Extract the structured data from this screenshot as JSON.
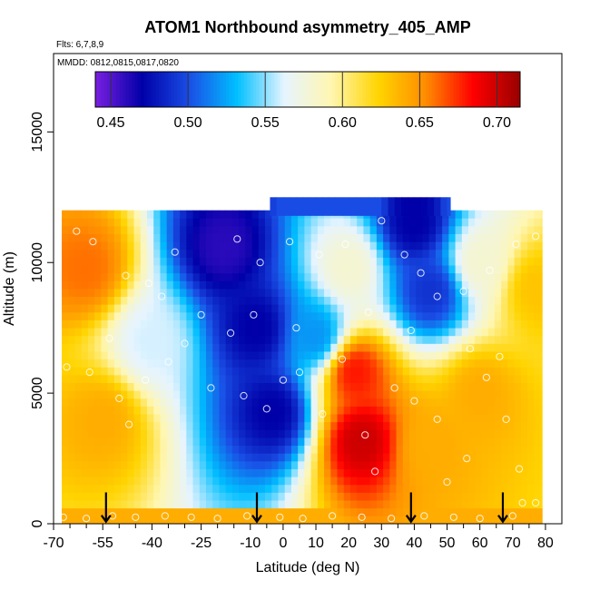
{
  "chart_data": {
    "type": "heatmap",
    "title": "ATOM1 Northbound asymmetry_405_AMP",
    "flights_note": "Flts: 6,7,8,9",
    "dates_note": "MMDD: 0812,0815,0817,0820",
    "xlabel": "Latitude (deg N)",
    "ylabel": "Altitude (m)",
    "xlim": [
      -70,
      85
    ],
    "ylim": [
      0,
      18000
    ],
    "x_ticks": [
      -70,
      -55,
      -40,
      -25,
      -10,
      0,
      10,
      20,
      30,
      40,
      50,
      60,
      70,
      80
    ],
    "x_tick_labels": [
      "-70",
      "-55",
      "-40",
      "-25",
      "-10",
      "0",
      "10",
      "20",
      "30",
      "40",
      "50",
      "60",
      "70",
      "80"
    ],
    "x_minor_ticks": [
      -65,
      -60,
      -50,
      -45,
      -35,
      -30,
      -20,
      -15,
      -5,
      5,
      15,
      25,
      35,
      45,
      55,
      65,
      75
    ],
    "y_ticks": [
      0,
      5000,
      10000,
      15000
    ],
    "y_tick_labels": [
      "0",
      "5000",
      "10000",
      "15000"
    ],
    "colorbar": {
      "min": 0.44,
      "max": 0.715,
      "ticks": [
        0.45,
        0.5,
        0.55,
        0.6,
        0.65,
        0.7
      ],
      "tick_labels": [
        "0.45",
        "0.50",
        "0.55",
        "0.60",
        "0.65",
        "0.70"
      ],
      "colors": [
        "#7a1fe0",
        "#0000a8",
        "#1a4fe6",
        "#00bfff",
        "#e6f4ff",
        "#fff6b0",
        "#ffd400",
        "#ff8c00",
        "#ff0000",
        "#990000"
      ]
    },
    "field": {
      "lat_range": [
        -67.5,
        79
      ],
      "alt_range": [
        0,
        11800
      ],
      "top_band": {
        "lat_range": [
          -4,
          51
        ],
        "alt_range": [
          11800,
          12500
        ]
      },
      "hotspots": [
        {
          "lat": -8,
          "alt": 7500,
          "value": 0.47
        },
        {
          "lat": -18,
          "alt": 10600,
          "value": 0.46
        },
        {
          "lat": -3,
          "alt": 4300,
          "value": 0.47
        },
        {
          "lat": 10,
          "alt": 7200,
          "value": 0.52
        },
        {
          "lat": 40,
          "alt": 11500,
          "value": 0.47
        },
        {
          "lat": 45,
          "alt": 8900,
          "value": 0.49
        },
        {
          "lat": 24,
          "alt": 3200,
          "value": 0.7
        },
        {
          "lat": 22,
          "alt": 5800,
          "value": 0.68
        },
        {
          "lat": -60,
          "alt": 9800,
          "value": 0.66
        },
        {
          "lat": -55,
          "alt": 4000,
          "value": 0.64
        },
        {
          "lat": 45,
          "alt": 3000,
          "value": 0.64
        },
        {
          "lat": 77,
          "alt": 9000,
          "value": 0.63
        },
        {
          "lat": 60,
          "alt": 5000,
          "value": 0.64
        },
        {
          "lat": 20,
          "alt": 9800,
          "value": 0.58
        },
        {
          "lat": -40,
          "alt": 7000,
          "value": 0.56
        },
        {
          "lat": 60,
          "alt": 10000,
          "value": 0.58
        }
      ]
    },
    "arrows_lat": [
      -54,
      -8,
      39,
      67
    ],
    "samples": [
      {
        "lat": -67,
        "alt": 250
      },
      {
        "lat": -60,
        "alt": 200
      },
      {
        "lat": -52,
        "alt": 300
      },
      {
        "lat": -45,
        "alt": 250
      },
      {
        "lat": -36,
        "alt": 300
      },
      {
        "lat": -28,
        "alt": 250
      },
      {
        "lat": -20,
        "alt": 200
      },
      {
        "lat": -11,
        "alt": 300
      },
      {
        "lat": -1,
        "alt": 250
      },
      {
        "lat": 6,
        "alt": 200
      },
      {
        "lat": 15,
        "alt": 300
      },
      {
        "lat": 24,
        "alt": 250
      },
      {
        "lat": 33,
        "alt": 200
      },
      {
        "lat": 43,
        "alt": 300
      },
      {
        "lat": 52,
        "alt": 250
      },
      {
        "lat": 60,
        "alt": 200
      },
      {
        "lat": 70,
        "alt": 300
      },
      {
        "lat": 77,
        "alt": 800
      },
      {
        "lat": -66,
        "alt": 6000
      },
      {
        "lat": -59,
        "alt": 5800
      },
      {
        "lat": -50,
        "alt": 4800
      },
      {
        "lat": -47,
        "alt": 3800
      },
      {
        "lat": -42,
        "alt": 5500
      },
      {
        "lat": -35,
        "alt": 6200
      },
      {
        "lat": -30,
        "alt": 6900
      },
      {
        "lat": -22,
        "alt": 5200
      },
      {
        "lat": -16,
        "alt": 7300
      },
      {
        "lat": -12,
        "alt": 4900
      },
      {
        "lat": -5,
        "alt": 4400
      },
      {
        "lat": 0,
        "alt": 5500
      },
      {
        "lat": 5,
        "alt": 5800
      },
      {
        "lat": 12,
        "alt": 4200
      },
      {
        "lat": 18,
        "alt": 6300
      },
      {
        "lat": 25,
        "alt": 3400
      },
      {
        "lat": 28,
        "alt": 2000
      },
      {
        "lat": 34,
        "alt": 5200
      },
      {
        "lat": 40,
        "alt": 4700
      },
      {
        "lat": 47,
        "alt": 4000
      },
      {
        "lat": 50,
        "alt": 1600
      },
      {
        "lat": 56,
        "alt": 2500
      },
      {
        "lat": 62,
        "alt": 5600
      },
      {
        "lat": 68,
        "alt": 4000
      },
      {
        "lat": 72,
        "alt": 2100
      },
      {
        "lat": 73,
        "alt": 800
      },
      {
        "lat": -63,
        "alt": 11200
      },
      {
        "lat": -58,
        "alt": 10800
      },
      {
        "lat": -48,
        "alt": 9500
      },
      {
        "lat": -41,
        "alt": 9200
      },
      {
        "lat": -33,
        "alt": 10400
      },
      {
        "lat": -25,
        "alt": 8000
      },
      {
        "lat": -14,
        "alt": 10900
      },
      {
        "lat": -7,
        "alt": 10000
      },
      {
        "lat": 2,
        "alt": 10800
      },
      {
        "lat": 11,
        "alt": 10300
      },
      {
        "lat": 19,
        "alt": 10700
      },
      {
        "lat": 30,
        "alt": 11600
      },
      {
        "lat": 37,
        "alt": 10300
      },
      {
        "lat": 42,
        "alt": 9600
      },
      {
        "lat": 47,
        "alt": 8700
      },
      {
        "lat": 55,
        "alt": 8900
      },
      {
        "lat": 63,
        "alt": 9700
      },
      {
        "lat": 71,
        "alt": 10700
      },
      {
        "lat": 77,
        "alt": 11000
      },
      {
        "lat": -53,
        "alt": 7100
      },
      {
        "lat": -37,
        "alt": 8700
      },
      {
        "lat": -9,
        "alt": 8000
      },
      {
        "lat": 4,
        "alt": 7500
      },
      {
        "lat": 26,
        "alt": 8100
      },
      {
        "lat": 39,
        "alt": 7400
      },
      {
        "lat": 57,
        "alt": 6700
      },
      {
        "lat": 66,
        "alt": 6400
      }
    ]
  }
}
